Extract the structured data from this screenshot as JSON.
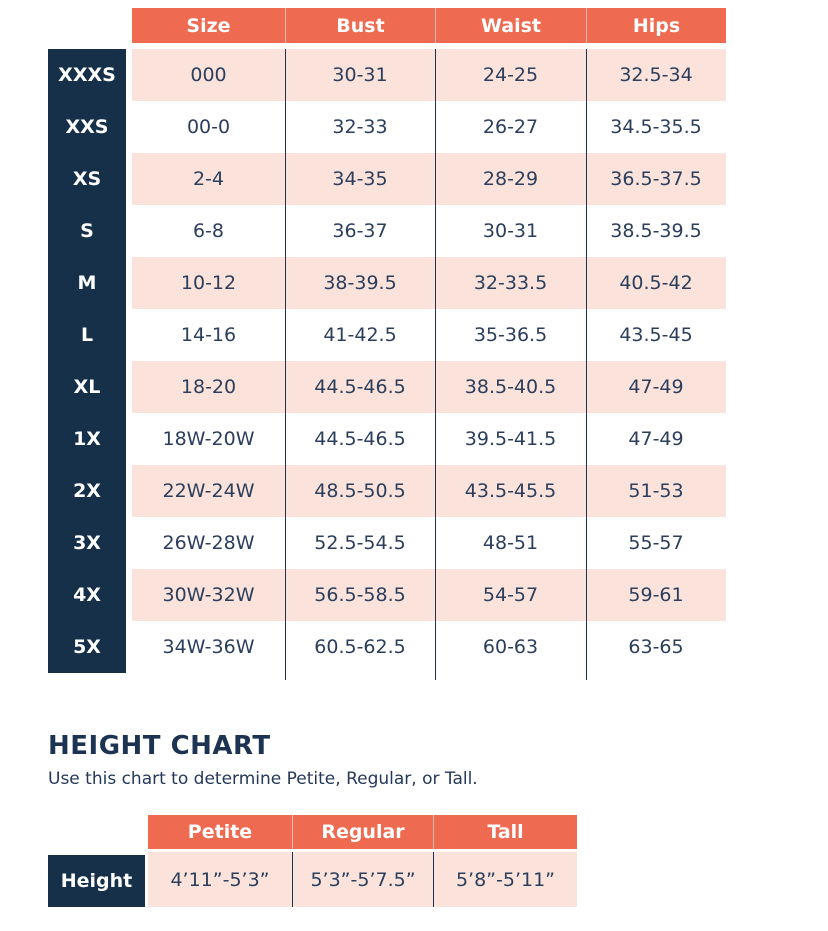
{
  "colors": {
    "coral": "#EE6A50",
    "pink": "#FBE3DC",
    "navy": "#16304A",
    "text_navy": "#2B3E5C"
  },
  "chart_data": [
    {
      "type": "table",
      "name": "size-chart",
      "title": "",
      "columns": [
        "Size",
        "Bust",
        "Waist",
        "Hips"
      ],
      "row_labels": [
        "XXXS",
        "XXS",
        "XS",
        "S",
        "M",
        "L",
        "XL",
        "1X",
        "2X",
        "3X",
        "4X",
        "5X"
      ],
      "rows": [
        [
          "000",
          "30-31",
          "24-25",
          "32.5-34"
        ],
        [
          "00-0",
          "32-33",
          "26-27",
          "34.5-35.5"
        ],
        [
          "2-4",
          "34-35",
          "28-29",
          "36.5-37.5"
        ],
        [
          "6-8",
          "36-37",
          "30-31",
          "38.5-39.5"
        ],
        [
          "10-12",
          "38-39.5",
          "32-33.5",
          "40.5-42"
        ],
        [
          "14-16",
          "41-42.5",
          "35-36.5",
          "43.5-45"
        ],
        [
          "18-20",
          "44.5-46.5",
          "38.5-40.5",
          "47-49"
        ],
        [
          "18W-20W",
          "44.5-46.5",
          "39.5-41.5",
          "47-49"
        ],
        [
          "22W-24W",
          "48.5-50.5",
          "43.5-45.5",
          "51-53"
        ],
        [
          "26W-28W",
          "52.5-54.5",
          "48-51",
          "55-57"
        ],
        [
          "30W-32W",
          "56.5-58.5",
          "54-57",
          "59-61"
        ],
        [
          "34W-36W",
          "60.5-62.5",
          "60-63",
          "63-65"
        ]
      ],
      "layout": {
        "striping": "odd rows pink, even rows white",
        "grid": "vertical column dividers only",
        "legend_position": "none"
      }
    },
    {
      "type": "table",
      "name": "height-chart",
      "title": "HEIGHT CHART",
      "subtitle": "Use this chart to determine Petite, Regular, or Tall.",
      "columns": [
        "Petite",
        "Regular",
        "Tall"
      ],
      "row_labels": [
        "Height"
      ],
      "rows": [
        [
          "4’11”-5’3”",
          "5’3”-5’7.5”",
          "5’8”-5’11”"
        ]
      ],
      "layout": {
        "striping": "single pink row",
        "grid": "vertical column dividers only",
        "legend_position": "none"
      }
    }
  ]
}
